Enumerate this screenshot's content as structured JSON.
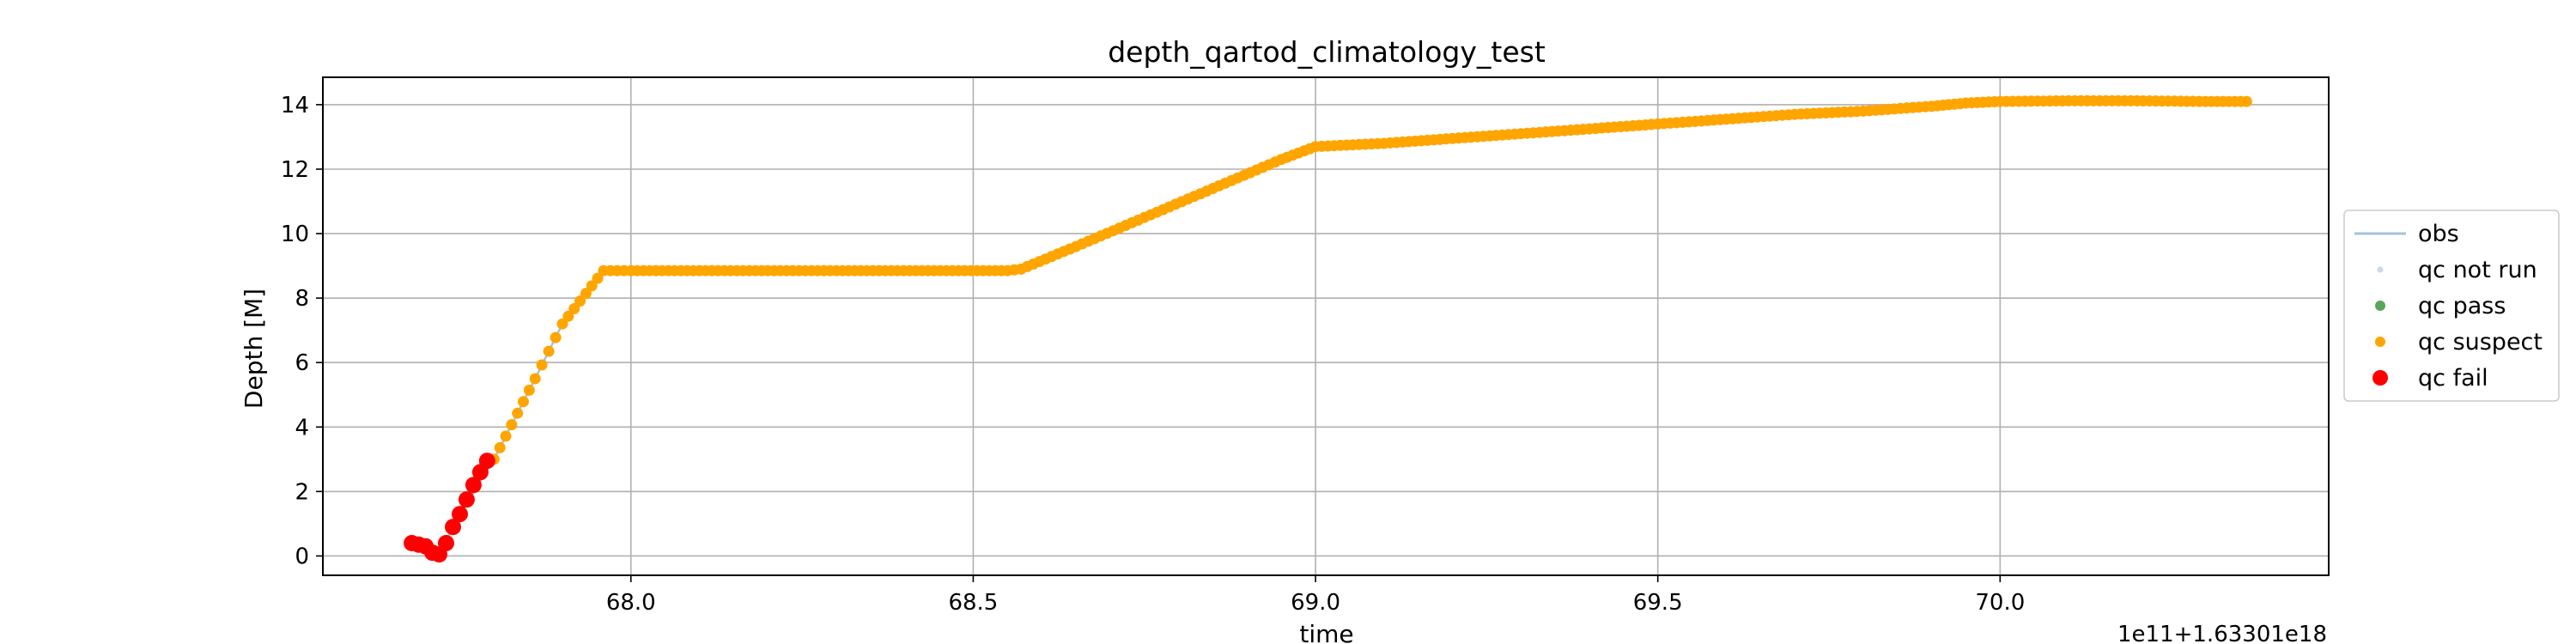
{
  "chart_data": {
    "type": "scatter",
    "title": "depth_qartod_climatology_test",
    "xlabel": "time",
    "ylabel": "Depth [M]",
    "x_offset_label": "1e11+1.63301e18",
    "xlim": [
      67.55,
      70.48
    ],
    "ylim": [
      -0.6,
      14.85
    ],
    "x_ticks": [
      68.0,
      68.5,
      69.0,
      69.5,
      70.0
    ],
    "x_tick_labels": [
      "68.0",
      "68.5",
      "69.0",
      "69.5",
      "70.0"
    ],
    "y_ticks": [
      0,
      2,
      4,
      6,
      8,
      10,
      12,
      14
    ],
    "y_tick_labels": [
      "0",
      "2",
      "4",
      "6",
      "8",
      "10",
      "12",
      "14"
    ],
    "grid": true,
    "legend_position": "outside-right",
    "series": [
      {
        "name": "obs",
        "kind": "line",
        "color": "#9ec4e0",
        "x": [
          67.68,
          67.7,
          67.72,
          67.75,
          67.8,
          67.86,
          67.9,
          67.96,
          68.0,
          68.3,
          68.55,
          68.57,
          68.65,
          68.75,
          68.85,
          68.95,
          69.0,
          69.1,
          69.2,
          69.3,
          69.4,
          69.5,
          69.6,
          69.7,
          69.8,
          69.9,
          69.95,
          70.0,
          70.1,
          70.2,
          70.3,
          70.36
        ],
        "y": [
          0.4,
          0.3,
          0.05,
          1.3,
          3.0,
          5.5,
          7.2,
          8.85,
          8.85,
          8.85,
          8.85,
          8.9,
          9.6,
          10.5,
          11.4,
          12.3,
          12.7,
          12.8,
          12.95,
          13.1,
          13.25,
          13.4,
          13.55,
          13.7,
          13.8,
          13.95,
          14.05,
          14.1,
          14.12,
          14.12,
          14.1,
          14.1
        ]
      },
      {
        "name": "qc not run",
        "kind": "points",
        "color": "#c8d8e8",
        "x": [],
        "y": []
      },
      {
        "name": "qc pass",
        "kind": "points",
        "color": "#5aa55a",
        "x": [],
        "y": []
      },
      {
        "name": "qc suspect",
        "kind": "points",
        "color": "#ffa500",
        "x": [
          67.8,
          67.86,
          67.9,
          67.96,
          68.0,
          68.3,
          68.55,
          68.57,
          68.65,
          68.75,
          68.85,
          68.95,
          69.0,
          69.1,
          69.2,
          69.3,
          69.4,
          69.5,
          69.6,
          69.7,
          69.8,
          69.9,
          69.95,
          70.0,
          70.1,
          70.2,
          70.3,
          70.36
        ],
        "y": [
          3.0,
          5.5,
          7.2,
          8.85,
          8.85,
          8.85,
          8.85,
          8.9,
          9.6,
          10.5,
          11.4,
          12.3,
          12.7,
          12.8,
          12.95,
          13.1,
          13.25,
          13.4,
          13.55,
          13.7,
          13.8,
          13.95,
          14.05,
          14.1,
          14.12,
          14.12,
          14.1,
          14.1
        ]
      },
      {
        "name": "qc fail",
        "kind": "points",
        "color": "#ff0000",
        "x": [
          67.68,
          67.69,
          67.7,
          67.71,
          67.72,
          67.73,
          67.74,
          67.75,
          67.76,
          67.77,
          67.78,
          67.79
        ],
        "y": [
          0.4,
          0.35,
          0.3,
          0.1,
          0.05,
          0.4,
          0.9,
          1.3,
          1.75,
          2.2,
          2.6,
          2.95
        ]
      }
    ]
  }
}
